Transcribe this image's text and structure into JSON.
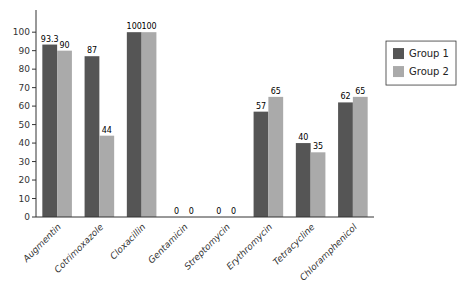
{
  "chart_data": {
    "type": "bar",
    "categories": [
      "Augmentin",
      "Cotrimoxazole",
      "Cloxacillin",
      "Gentamicin",
      "Streptomycin",
      "Erythromycin",
      "Tetracycline",
      "Chloramphenicol"
    ],
    "series": [
      {
        "name": "Group 1",
        "color": "#555555",
        "values": [
          93.3,
          87,
          100,
          0,
          0,
          57,
          40,
          62
        ]
      },
      {
        "name": "Group 2",
        "color": "#aaaaaa",
        "values": [
          90,
          44,
          100,
          0,
          0,
          65,
          35,
          65
        ]
      }
    ],
    "ylim": [
      0,
      112
    ],
    "yticks": [
      0,
      10,
      20,
      30,
      40,
      50,
      60,
      70,
      80,
      90,
      100
    ],
    "grid": false,
    "legend": "right",
    "data_labels": true
  }
}
